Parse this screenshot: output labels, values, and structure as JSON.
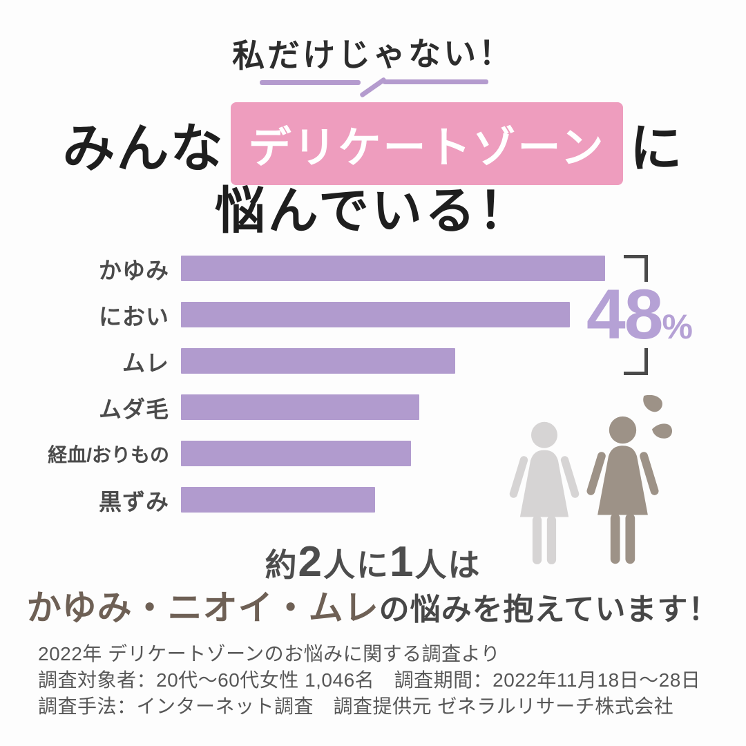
{
  "header": {
    "catchphrase": "私だけじゃない！",
    "title_prefix": "みんな",
    "title_highlight": "デリケートゾーン",
    "title_suffix": "に",
    "title_line2": "悩んでいる！",
    "highlight_bg_color": "#ee9dbe",
    "underline_color": "#b49bce"
  },
  "chart_data": {
    "type": "bar",
    "orientation": "horizontal",
    "categories": [
      "かゆみ",
      "におい",
      "ムレ",
      "ムダ毛",
      "経血/おりもの",
      "黒ずみ"
    ],
    "values_percent_estimated": [
      48,
      44,
      31,
      27,
      26,
      22
    ],
    "bar_color": "#b19bce",
    "axes": "none",
    "grid": false,
    "annotation": {
      "value": "48",
      "unit": "%",
      "color": "#b5a1d5",
      "bracket_color": "#4a4a4a",
      "applies_to": [
        "かゆみ",
        "におい",
        "ムレ"
      ]
    }
  },
  "figures": {
    "left_woman_color": "#d6d4d4",
    "right_woman_color": "#9d9287",
    "sweat_drop_color": "#9d9287"
  },
  "statement": {
    "seg1": "約",
    "num1": "2",
    "seg2": "人に",
    "num2": "1",
    "seg3": "人は",
    "line2_highlight": "かゆみ・ニオイ・ムレ",
    "line2_rest": "の悩みを抱えています！",
    "highlight_color": "#6e6055"
  },
  "footer": {
    "lines": [
      "2022年 デリケートゾーンのお悩みに関する調査より",
      "調査対象者：20代～60代女性 1,046名　調査期間：2022年11月18日～28日",
      "調査手法：インターネット調査　調査提供元 ゼネラルリサーチ株式会社"
    ]
  }
}
